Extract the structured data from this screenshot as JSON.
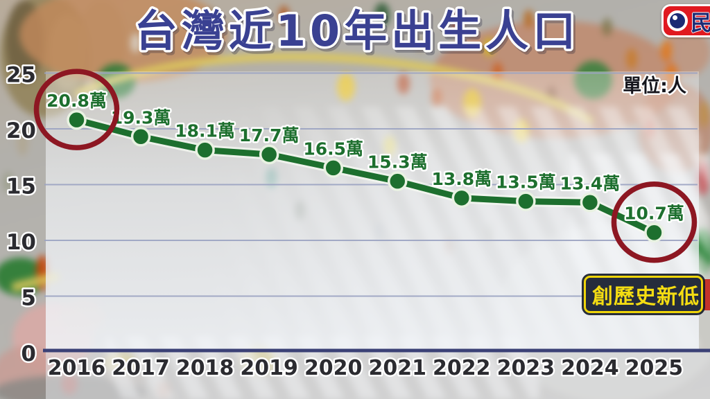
{
  "logo": {
    "channel_text": "民"
  },
  "chart_data": {
    "type": "line",
    "title": "台灣近10年出生人口",
    "unit_label": "單位:人",
    "xlabel": "",
    "ylabel": "",
    "categories": [
      "2016",
      "2017",
      "2018",
      "2019",
      "2020",
      "2021",
      "2022",
      "2023",
      "2024",
      "2025"
    ],
    "values": [
      20.8,
      19.3,
      18.1,
      17.7,
      16.5,
      15.3,
      13.8,
      13.5,
      13.4,
      10.7
    ],
    "point_labels": [
      "20.8萬",
      "19.3萬",
      "18.1萬",
      "17.7萬",
      "16.5萬",
      "15.3萬",
      "13.8萬",
      "13.5萬",
      "13.4萬",
      "10.7萬"
    ],
    "ylim": [
      0,
      25
    ],
    "yticks": [
      0,
      5,
      10,
      15,
      20,
      25
    ],
    "grid": true,
    "legend": false,
    "annotations": {
      "circled_categories": [
        "2016",
        "2025"
      ],
      "circled_indices": [
        0,
        9
      ],
      "badge_label": "創歷史新低"
    }
  },
  "colors": {
    "line_green": "#1d6f2e",
    "title_blue": "#3a4192",
    "highlight_red": "#8d1722",
    "badge_bg": "#252c3c",
    "badge_yellow": "#efd50a",
    "axis_navy": "#3b4176",
    "gridline": "#9ba3c2",
    "logo_red": "#e01920"
  }
}
